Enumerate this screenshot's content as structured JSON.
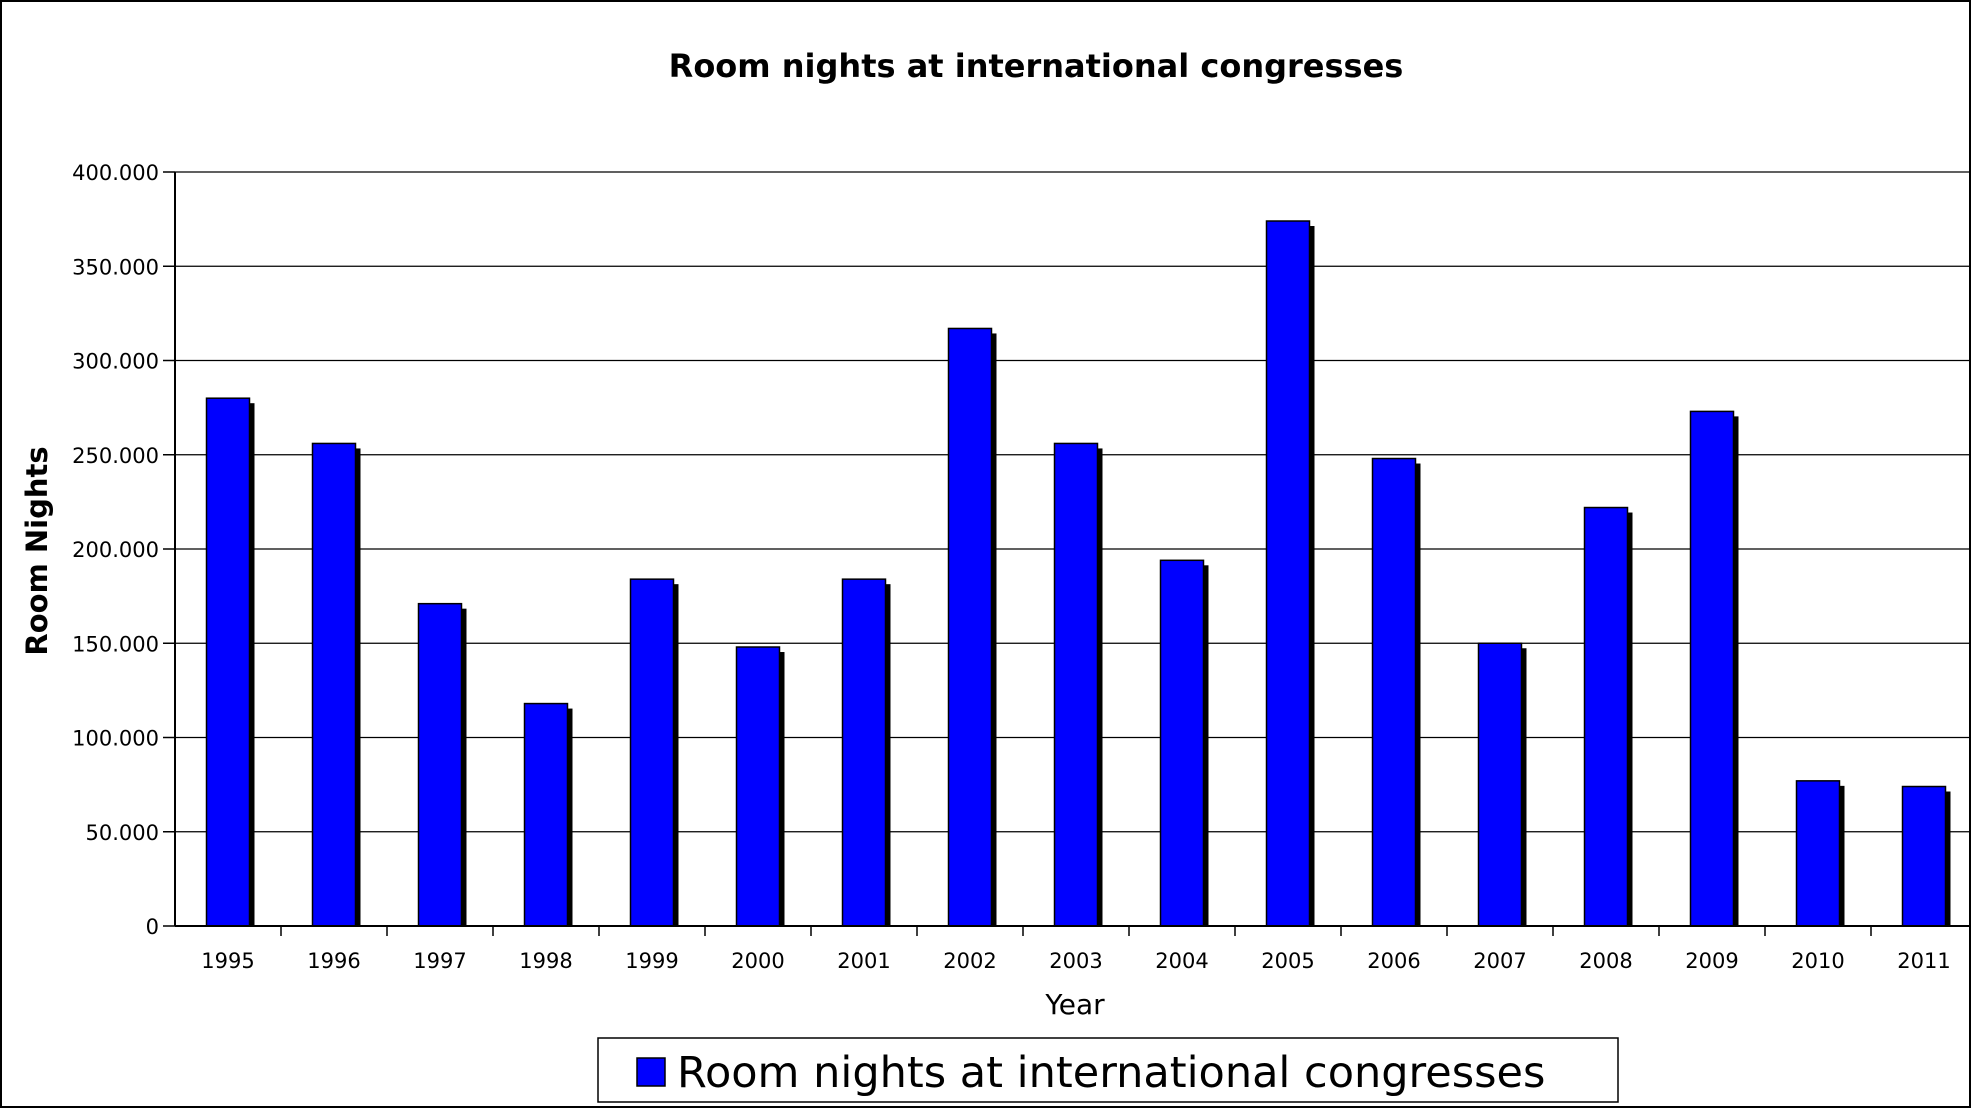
{
  "chart_data": {
    "type": "bar",
    "title": "Room nights at international congresses",
    "xlabel": "Year",
    "ylabel": "Room Nights",
    "categories": [
      "1995",
      "1996",
      "1997",
      "1998",
      "1999",
      "2000",
      "2001",
      "2002",
      "2003",
      "2004",
      "2005",
      "2006",
      "2007",
      "2008",
      "2009",
      "2010",
      "2011"
    ],
    "series": [
      {
        "name": "Room nights at international congresses",
        "color": "#0000ff",
        "values": [
          280000,
          256000,
          171000,
          118000,
          184000,
          148000,
          184000,
          317000,
          256000,
          194000,
          374000,
          248000,
          150000,
          222000,
          273000,
          77000,
          74000
        ]
      }
    ],
    "ylim": [
      0,
      400000
    ],
    "yticks": [
      0,
      50000,
      100000,
      150000,
      200000,
      250000,
      300000,
      350000,
      400000
    ],
    "ytick_labels": [
      "0",
      "50.000",
      "100.000",
      "150.000",
      "200.000",
      "250.000",
      "300.000",
      "350.000",
      "400.000"
    ],
    "grid": true,
    "legend_position": "bottom"
  },
  "colors": {
    "bar": "#0000ff",
    "bar_shadow": "#000000",
    "grid": "#000000",
    "frame": "#000000"
  }
}
